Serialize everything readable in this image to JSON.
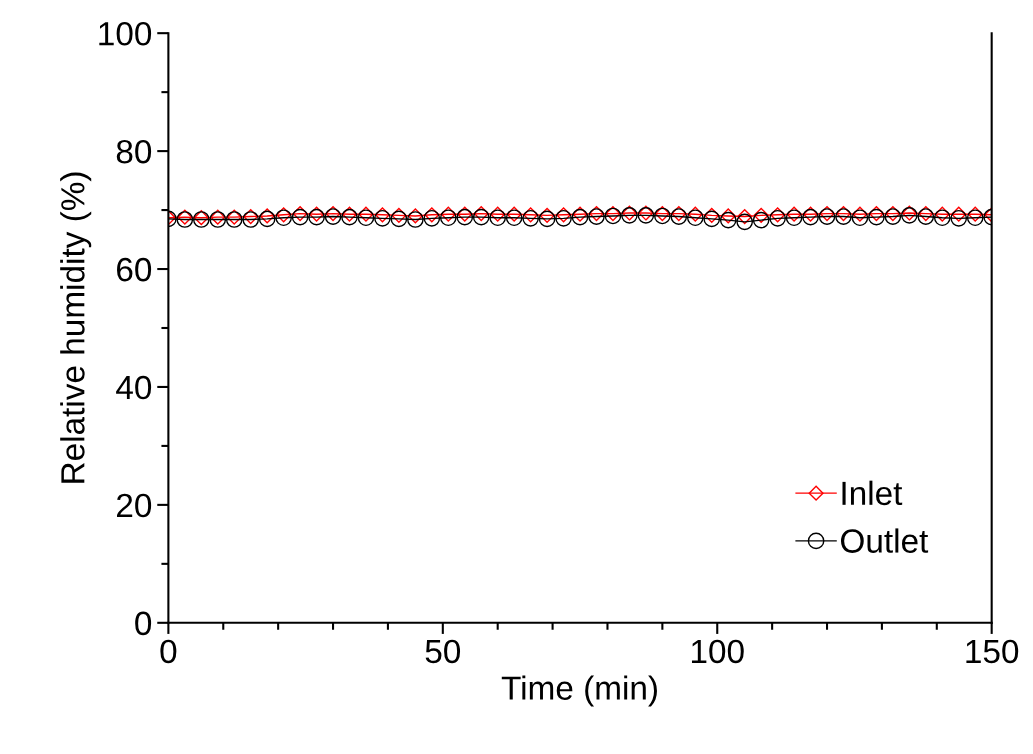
{
  "chart_data": {
    "type": "line",
    "xlabel": "Time (min)",
    "ylabel": "Relative humidity (%)",
    "x": [
      0,
      3,
      6,
      9,
      12,
      15,
      18,
      21,
      24,
      27,
      30,
      33,
      36,
      39,
      42,
      45,
      48,
      51,
      54,
      57,
      60,
      63,
      66,
      69,
      72,
      75,
      78,
      81,
      84,
      87,
      90,
      93,
      96,
      99,
      102,
      105,
      108,
      111,
      114,
      117,
      120,
      123,
      126,
      129,
      132,
      135,
      138,
      141,
      144,
      147,
      150
    ],
    "series": [
      {
        "name": "Inlet",
        "color": "#ff0000",
        "marker": "diamond",
        "values": [
          68.7,
          68.8,
          68.7,
          68.8,
          68.8,
          68.9,
          69.0,
          69.2,
          69.4,
          69.3,
          69.4,
          69.3,
          69.3,
          69.2,
          69.1,
          69.0,
          69.2,
          69.3,
          69.3,
          69.4,
          69.3,
          69.3,
          69.2,
          69.1,
          69.2,
          69.3,
          69.4,
          69.4,
          69.5,
          69.5,
          69.4,
          69.4,
          69.3,
          69.1,
          69.0,
          68.9,
          69.1,
          69.2,
          69.3,
          69.3,
          69.4,
          69.4,
          69.3,
          69.4,
          69.4,
          69.5,
          69.4,
          69.3,
          69.3,
          69.3,
          69.2
        ]
      },
      {
        "name": "Outlet",
        "color": "#000000",
        "marker": "circle",
        "values": [
          68.5,
          68.4,
          68.4,
          68.4,
          68.4,
          68.4,
          68.5,
          68.7,
          68.8,
          68.8,
          68.9,
          68.8,
          68.7,
          68.6,
          68.5,
          68.4,
          68.6,
          68.7,
          68.8,
          68.8,
          68.7,
          68.7,
          68.6,
          68.5,
          68.6,
          68.8,
          68.9,
          69.0,
          69.1,
          69.1,
          69.0,
          68.9,
          68.7,
          68.5,
          68.3,
          68.0,
          68.3,
          68.6,
          68.7,
          68.8,
          68.9,
          68.9,
          68.7,
          68.8,
          68.9,
          69.1,
          68.9,
          68.7,
          68.6,
          68.7,
          68.8
        ]
      }
    ],
    "xlim": [
      0,
      150
    ],
    "ylim": [
      0,
      100
    ],
    "xticks": [
      0,
      {
        "value": 10,
        "label": null
      },
      {
        "value": 20,
        "label": null
      },
      {
        "value": 30,
        "label": null
      },
      {
        "value": 40,
        "label": null
      },
      50,
      {
        "value": 60,
        "label": null
      },
      {
        "value": 70,
        "label": null
      },
      {
        "value": 80,
        "label": null
      },
      {
        "value": 90,
        "label": null
      },
      100,
      {
        "value": 110,
        "label": null
      },
      {
        "value": 120,
        "label": null
      },
      {
        "value": 130,
        "label": null
      },
      {
        "value": 140,
        "label": null
      },
      150
    ],
    "yticks": [
      0,
      {
        "value": 10,
        "label": null
      },
      20,
      {
        "value": 30,
        "label": null
      },
      40,
      {
        "value": 50,
        "label": null
      },
      60,
      {
        "value": 70,
        "label": null
      },
      80,
      {
        "value": 90,
        "label": null
      },
      100
    ],
    "legend": "bottom right",
    "grid": false,
    "line_style": "solid"
  }
}
